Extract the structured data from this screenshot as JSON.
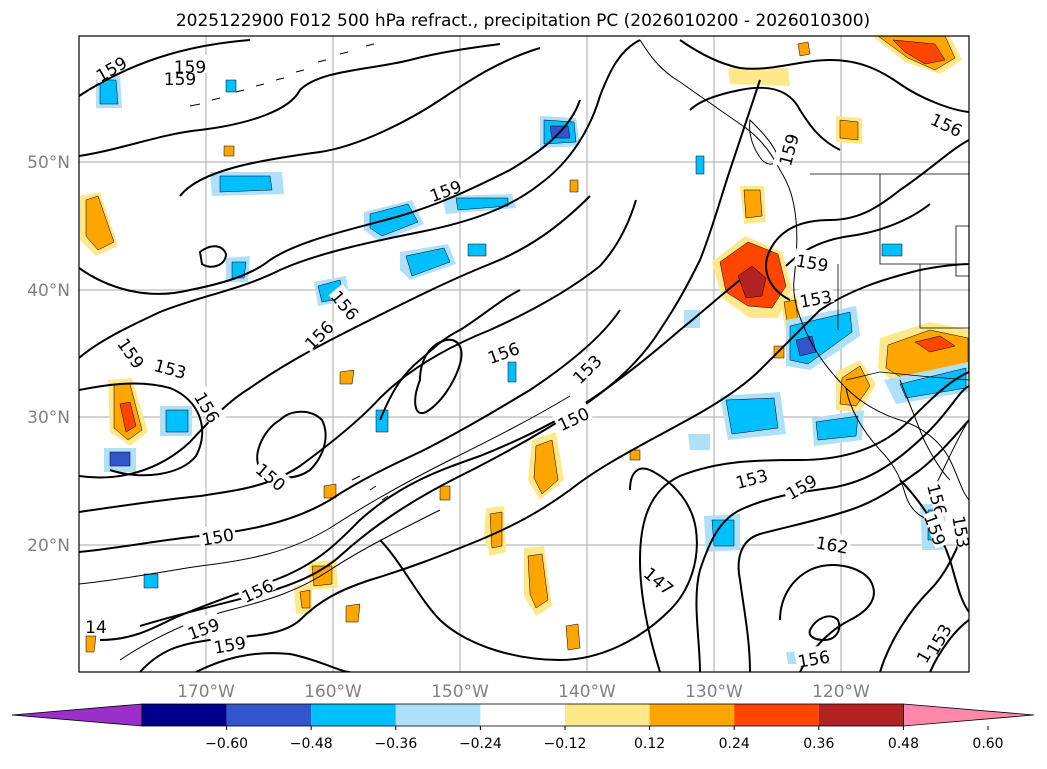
{
  "title": "2025122900 F012 500 hPa refract., precipitation PC (2026010200 - 2026010300)",
  "lat_labels": [
    "50°N",
    "40°N",
    "30°N",
    "20°N"
  ],
  "lon_labels": [
    "170°W",
    "160°W",
    "150°W",
    "140°W",
    "130°W",
    "120°W"
  ],
  "contour_labels": [
    "159",
    "159",
    "159",
    "159",
    "156",
    "153",
    "159",
    "156",
    "156",
    "153",
    "156",
    "150",
    "150",
    "150",
    "156",
    "159",
    "159",
    "147",
    "153",
    "159",
    "162",
    "156",
    "159",
    "153",
    "156",
    "156",
    "153",
    "159",
    "156",
    "159",
    "153",
    "14"
  ],
  "colorbar": {
    "ticks": [
      "−0.60",
      "−0.48",
      "−0.36",
      "−0.24",
      "−0.12",
      "0.12",
      "0.24",
      "0.36",
      "0.48",
      "0.60"
    ],
    "colors": [
      "#9b30c8",
      "#00008b",
      "#3355cc",
      "#00bfff",
      "#aee0fa",
      "#ffffff",
      "#ffe88a",
      "#ffa500",
      "#ff4500",
      "#b22222",
      "#ff88aa"
    ]
  },
  "colors": {
    "axis_label": "#808080",
    "contour": "#000000",
    "coast": "#000000"
  }
}
